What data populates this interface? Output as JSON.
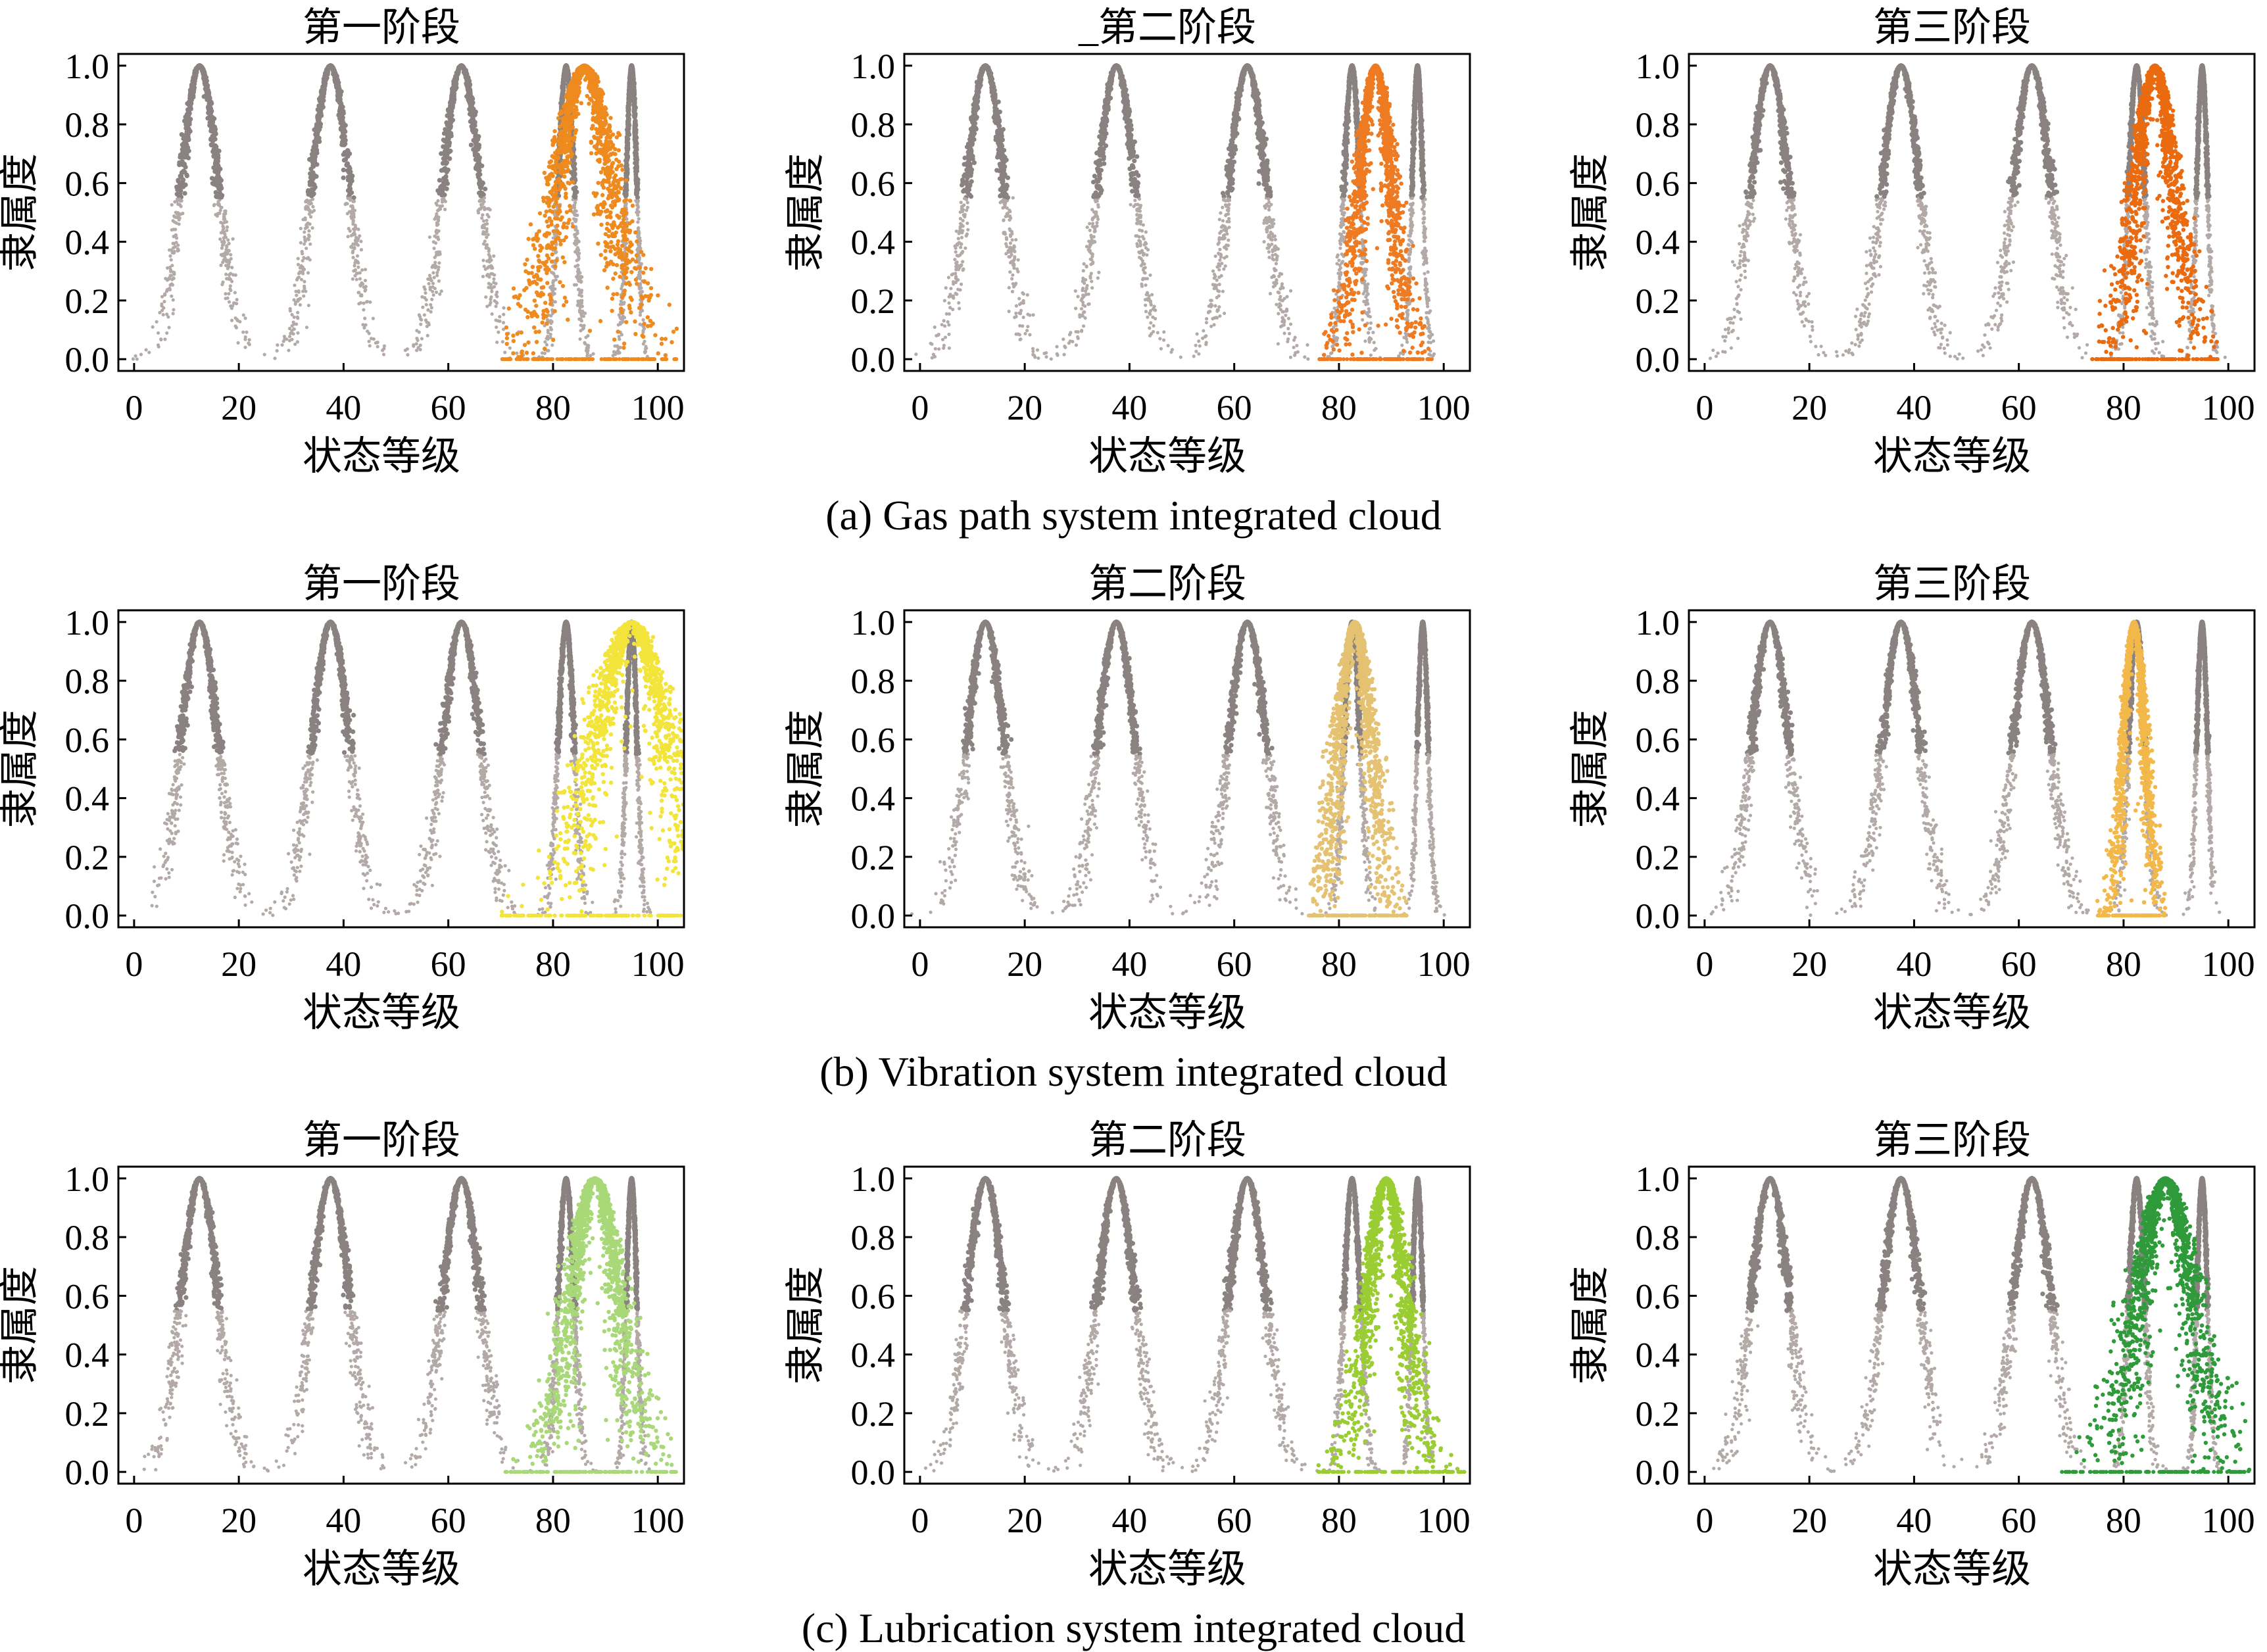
{
  "figure": {
    "captions": [
      "(a) Gas path system integrated cloud",
      "(b) Vibration system integrated cloud",
      "(c) Lubrication system integrated cloud"
    ]
  },
  "chart_data": [
    {
      "type": "scatter",
      "row": 0,
      "col": 0,
      "title": "第一阶段",
      "xlabel": "状态等级",
      "ylabel": "隶属度",
      "xlim": [
        -3,
        105
      ],
      "ylim": [
        -0.04,
        1.04
      ],
      "xticks": [
        0,
        20,
        40,
        60,
        80,
        100
      ],
      "yticks": [
        "0.0",
        "0.2",
        "0.4",
        "0.6",
        "0.8",
        "1.0"
      ],
      "reference_clouds": [
        {
          "ex": 12.5,
          "en": 3.5
        },
        {
          "ex": 37.5,
          "en": 3.5
        },
        {
          "ex": 62.5,
          "en": 3.5
        },
        {
          "ex": 82.5,
          "en": 1.5
        },
        {
          "ex": 95,
          "en": 1.0
        }
      ],
      "integrated_cloud": {
        "ex": 86,
        "en": 5.0,
        "he": 1.4,
        "xmin": 70,
        "xmax": 104,
        "color": "#ee8a1e"
      }
    },
    {
      "type": "scatter",
      "row": 0,
      "col": 1,
      "title": "_第二阶段",
      "xlabel": "状态等级",
      "ylabel": "隶属度",
      "xlim": [
        -3,
        105
      ],
      "ylim": [
        -0.04,
        1.04
      ],
      "xticks": [
        0,
        20,
        40,
        60,
        80,
        100
      ],
      "yticks": [
        "0.0",
        "0.2",
        "0.4",
        "0.6",
        "0.8",
        "1.0"
      ],
      "reference_clouds": [
        {
          "ex": 12.5,
          "en": 3.5
        },
        {
          "ex": 37.5,
          "en": 3.5
        },
        {
          "ex": 62.5,
          "en": 3.5
        },
        {
          "ex": 82.5,
          "en": 1.5
        },
        {
          "ex": 95,
          "en": 1.0
        }
      ],
      "integrated_cloud": {
        "ex": 87,
        "en": 3.0,
        "he": 0.8,
        "xmin": 76,
        "xmax": 98,
        "color": "#ee7a22"
      }
    },
    {
      "type": "scatter",
      "row": 0,
      "col": 2,
      "title": "第三阶段",
      "xlabel": "状态等级",
      "ylabel": "隶属度",
      "xlim": [
        -3,
        105
      ],
      "ylim": [
        -0.04,
        1.04
      ],
      "xticks": [
        0,
        20,
        40,
        60,
        80,
        100
      ],
      "yticks": [
        "0.0",
        "0.2",
        "0.4",
        "0.6",
        "0.8",
        "1.0"
      ],
      "reference_clouds": [
        {
          "ex": 12.5,
          "en": 3.5
        },
        {
          "ex": 37.5,
          "en": 3.5
        },
        {
          "ex": 62.5,
          "en": 3.5
        },
        {
          "ex": 82.5,
          "en": 1.5
        },
        {
          "ex": 95,
          "en": 1.0
        }
      ],
      "integrated_cloud": {
        "ex": 86,
        "en": 3.5,
        "he": 1.0,
        "xmin": 74,
        "xmax": 98,
        "color": "#ea6a10"
      }
    },
    {
      "type": "scatter",
      "row": 1,
      "col": 0,
      "title": "第一阶段",
      "xlabel": "状态等级",
      "ylabel": "隶属度",
      "xlim": [
        -3,
        105
      ],
      "ylim": [
        -0.04,
        1.04
      ],
      "xticks": [
        0,
        20,
        40,
        60,
        80,
        100
      ],
      "yticks": [
        "0.0",
        "0.2",
        "0.4",
        "0.6",
        "0.8",
        "1.0"
      ],
      "reference_clouds": [
        {
          "ex": 12.5,
          "en": 3.5
        },
        {
          "ex": 37.5,
          "en": 3.5
        },
        {
          "ex": 62.5,
          "en": 3.5
        },
        {
          "ex": 82.5,
          "en": 1.5
        },
        {
          "ex": 95,
          "en": 1.0
        }
      ],
      "integrated_cloud": {
        "ex": 95,
        "en": 6.5,
        "he": 1.8,
        "xmin": 70,
        "xmax": 105,
        "color": "#f2e43a"
      }
    },
    {
      "type": "scatter",
      "row": 1,
      "col": 1,
      "title": "第二阶段",
      "xlabel": "状态等级",
      "ylabel": "隶属度",
      "xlim": [
        -3,
        105
      ],
      "ylim": [
        -0.04,
        1.04
      ],
      "xticks": [
        0,
        20,
        40,
        60,
        80,
        100
      ],
      "yticks": [
        "0.0",
        "0.2",
        "0.4",
        "0.6",
        "0.8",
        "1.0"
      ],
      "reference_clouds": [
        {
          "ex": 12.5,
          "en": 3.5
        },
        {
          "ex": 37.5,
          "en": 3.5
        },
        {
          "ex": 62.5,
          "en": 3.5
        },
        {
          "ex": 82.5,
          "en": 1.5
        },
        {
          "ex": 96,
          "en": 1.0
        }
      ],
      "integrated_cloud": {
        "ex": 83,
        "en": 3.0,
        "he": 0.9,
        "xmin": 74,
        "xmax": 93,
        "color": "#e5c272"
      }
    },
    {
      "type": "scatter",
      "row": 1,
      "col": 2,
      "title": "第三阶段",
      "xlabel": "状态等级",
      "ylabel": "隶属度",
      "xlim": [
        -3,
        105
      ],
      "ylim": [
        -0.04,
        1.04
      ],
      "xticks": [
        0,
        20,
        40,
        60,
        80,
        100
      ],
      "yticks": [
        "0.0",
        "0.2",
        "0.4",
        "0.6",
        "0.8",
        "1.0"
      ],
      "reference_clouds": [
        {
          "ex": 12.5,
          "en": 3.5
        },
        {
          "ex": 37.5,
          "en": 3.5
        },
        {
          "ex": 62.5,
          "en": 3.5
        },
        {
          "ex": 82.5,
          "en": 1.5
        },
        {
          "ex": 95,
          "en": 1.0
        }
      ],
      "integrated_cloud": {
        "ex": 82,
        "en": 2.0,
        "he": 0.5,
        "xmin": 75,
        "xmax": 88,
        "color": "#f2b84a"
      }
    },
    {
      "type": "scatter",
      "row": 2,
      "col": 0,
      "title": "第一阶段",
      "xlabel": "状态等级",
      "ylabel": "隶属度",
      "xlim": [
        -3,
        105
      ],
      "ylim": [
        -0.04,
        1.04
      ],
      "xticks": [
        0,
        20,
        40,
        60,
        80,
        100
      ],
      "yticks": [
        "0.0",
        "0.2",
        "0.4",
        "0.6",
        "0.8",
        "1.0"
      ],
      "reference_clouds": [
        {
          "ex": 12.5,
          "en": 3.5
        },
        {
          "ex": 37.5,
          "en": 3.5
        },
        {
          "ex": 62.5,
          "en": 3.5
        },
        {
          "ex": 82.5,
          "en": 1.5
        },
        {
          "ex": 95,
          "en": 1.0
        }
      ],
      "integrated_cloud": {
        "ex": 88,
        "en": 4.5,
        "he": 1.3,
        "xmin": 70,
        "xmax": 104,
        "color": "#a8d878"
      }
    },
    {
      "type": "scatter",
      "row": 2,
      "col": 1,
      "title": "第二阶段",
      "xlabel": "状态等级",
      "ylabel": "隶属度",
      "xlim": [
        -3,
        105
      ],
      "ylim": [
        -0.04,
        1.04
      ],
      "xticks": [
        0,
        20,
        40,
        60,
        80,
        100
      ],
      "yticks": [
        "0.0",
        "0.2",
        "0.4",
        "0.6",
        "0.8",
        "1.0"
      ],
      "reference_clouds": [
        {
          "ex": 12.5,
          "en": 3.5
        },
        {
          "ex": 37.5,
          "en": 3.5
        },
        {
          "ex": 62.5,
          "en": 3.5
        },
        {
          "ex": 82.5,
          "en": 1.5
        },
        {
          "ex": 95,
          "en": 1.0
        }
      ],
      "integrated_cloud": {
        "ex": 89,
        "en": 3.5,
        "he": 1.0,
        "xmin": 76,
        "xmax": 104,
        "color": "#9acd32"
      }
    },
    {
      "type": "scatter",
      "row": 2,
      "col": 2,
      "title": "第三阶段",
      "xlabel": "状态等级",
      "ylabel": "隶属度",
      "xlim": [
        -3,
        105
      ],
      "ylim": [
        -0.04,
        1.04
      ],
      "xticks": [
        0,
        20,
        40,
        60,
        80,
        100
      ],
      "yticks": [
        "0.0",
        "0.2",
        "0.4",
        "0.6",
        "0.8",
        "1.0"
      ],
      "reference_clouds": [
        {
          "ex": 12.5,
          "en": 3.5
        },
        {
          "ex": 37.5,
          "en": 3.5
        },
        {
          "ex": 62.5,
          "en": 3.5
        },
        {
          "ex": 82.5,
          "en": 1.5
        },
        {
          "ex": 95,
          "en": 1.0
        }
      ],
      "integrated_cloud": {
        "ex": 88,
        "en": 5.0,
        "he": 1.5,
        "xmin": 68,
        "xmax": 104,
        "color": "#2e9a3a"
      }
    }
  ]
}
